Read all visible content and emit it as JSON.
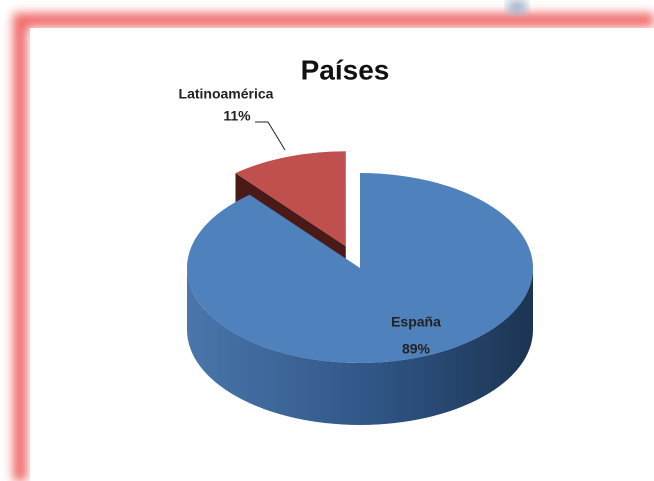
{
  "chart_data": {
    "type": "pie",
    "title": "Países",
    "categories": [
      "España",
      "Latinoamérica"
    ],
    "values": [
      89,
      11
    ],
    "value_labels": [
      "89%",
      "11%"
    ],
    "colors": [
      "#4f81bd",
      "#c0504d"
    ]
  }
}
